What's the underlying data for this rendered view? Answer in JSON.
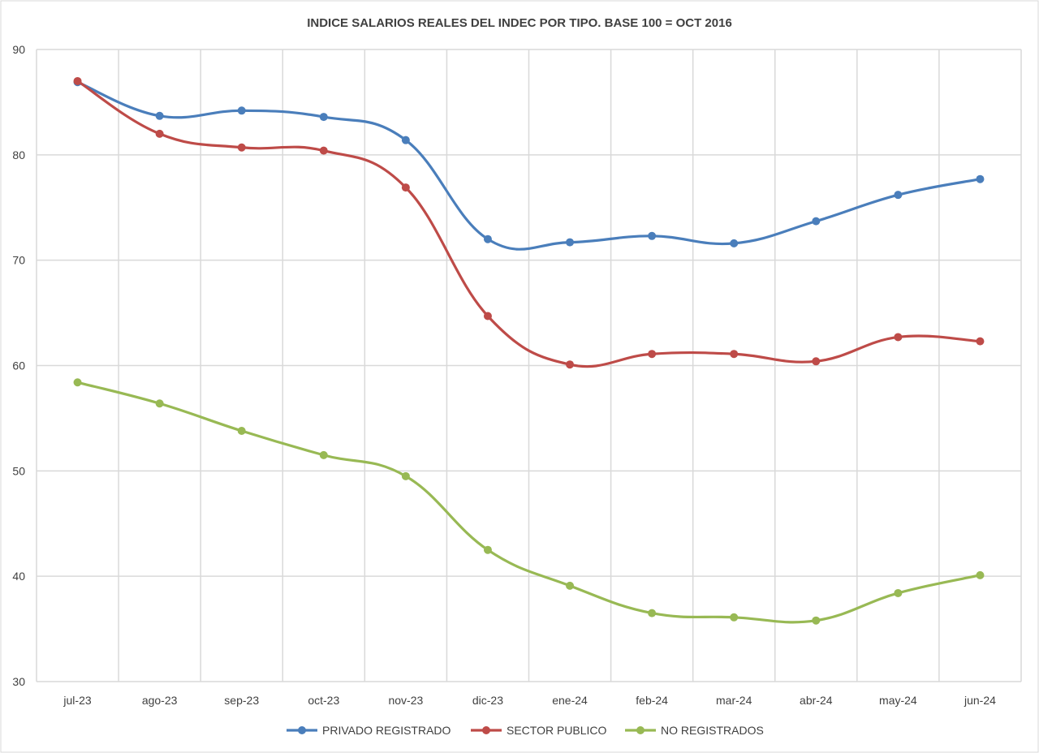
{
  "chart_data": {
    "type": "line",
    "title": "INDICE SALARIOS REALES DEL INDEC POR TIPO.  BASE 100 = OCT 2016",
    "xlabel": "",
    "ylabel": "",
    "categories": [
      "jul-23",
      "ago-23",
      "sep-23",
      "oct-23",
      "nov-23",
      "dic-23",
      "ene-24",
      "feb-24",
      "mar-24",
      "abr-24",
      "may-24",
      "jun-24"
    ],
    "ylim": [
      30,
      90
    ],
    "yticks": [
      "30",
      "40",
      "50",
      "60",
      "70",
      "80",
      "90"
    ],
    "grid": true,
    "legend_position": "bottom",
    "smooth": true,
    "series": [
      {
        "name": "PRIVADO REGISTRADO",
        "color": "#4a7ebb",
        "values": [
          86.9,
          83.7,
          84.2,
          83.6,
          81.4,
          72.0,
          71.7,
          72.3,
          71.6,
          73.7,
          76.2,
          77.7
        ]
      },
      {
        "name": "SECTOR PUBLICO",
        "color": "#be4b48",
        "values": [
          87.0,
          82.0,
          80.7,
          80.4,
          76.9,
          64.7,
          60.1,
          61.1,
          61.1,
          60.4,
          62.7,
          62.3
        ]
      },
      {
        "name": "NO REGISTRADOS",
        "color": "#98b954",
        "values": [
          58.4,
          56.4,
          53.8,
          51.5,
          49.5,
          42.5,
          39.1,
          36.5,
          36.1,
          35.8,
          38.4,
          40.1
        ]
      }
    ]
  }
}
